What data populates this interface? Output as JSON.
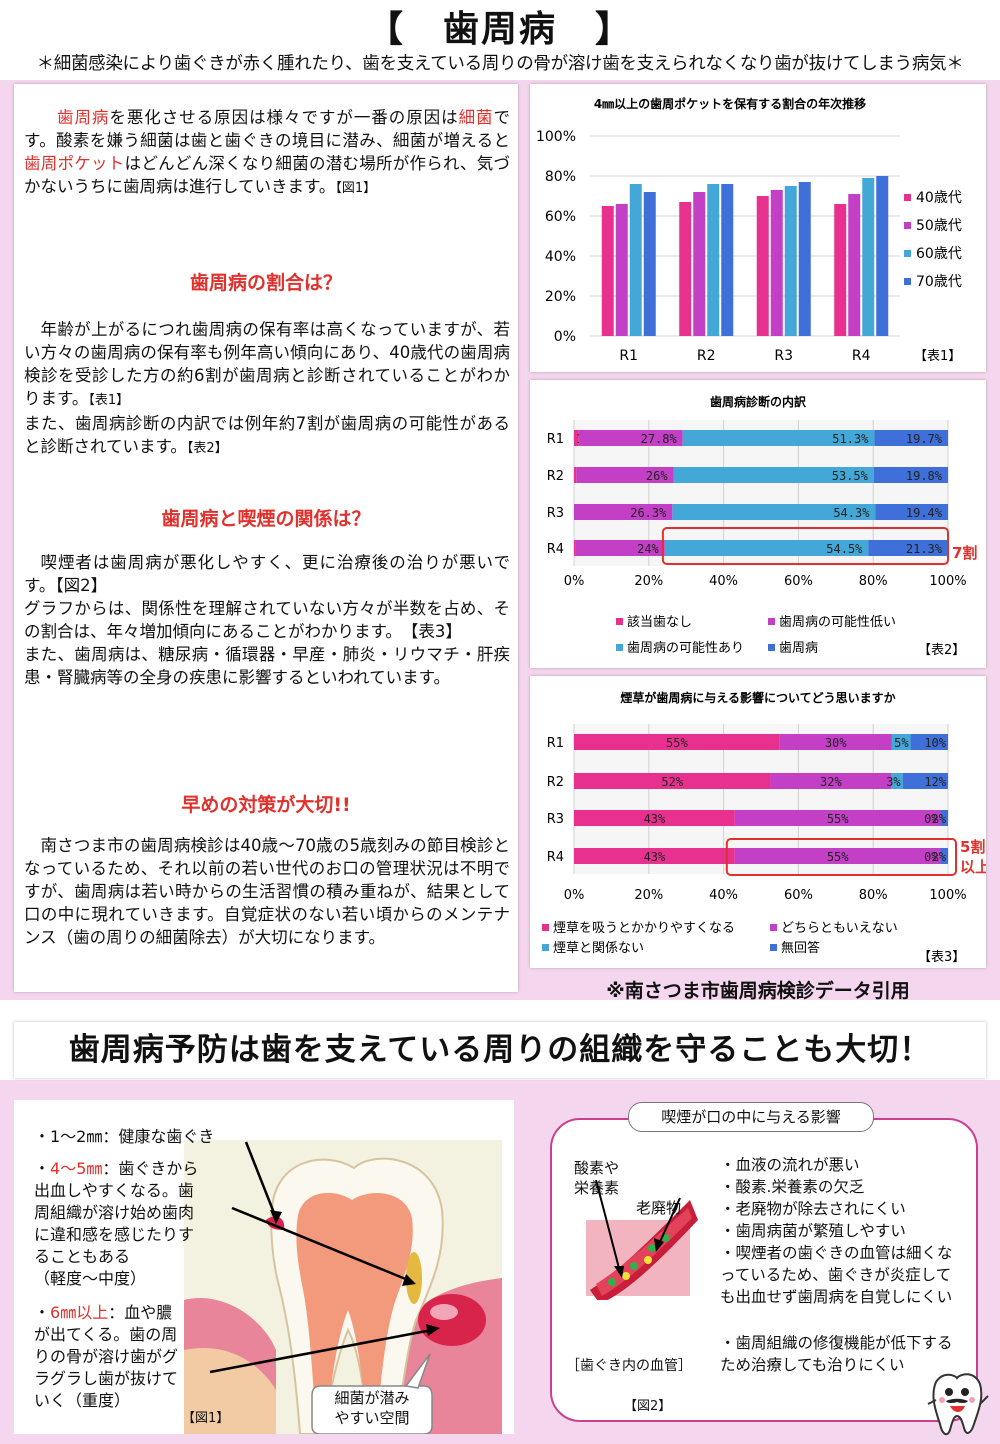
{
  "header": {
    "title": "【　歯周病　】",
    "subtitle": "＊細菌感染により歯ぐきが赤く腫れたり、歯を支えている周りの骨が溶け歯を支えられなくなり歯が抜けてしまう病気＊"
  },
  "intro": {
    "hl1": "歯周病",
    "t1": "を悪化させる原因は様々ですが一番の原因は",
    "hl2": "細菌",
    "t2": "です。酸素を嫌う細菌は歯と歯ぐきの境目に潜み、細菌が増えると",
    "hl3": "歯周ポケット",
    "t3": "はどんどん深くなり細菌の潜む場所が作られ、気づかないうちに歯周病は進行していきます。",
    "ref": "【図1】"
  },
  "section1": {
    "heading": "歯周病の割合は？",
    "p1": "年齢が上がるにつれ歯周病の保有率は高くなっていますが、若い方々の歯周病の保有率も例年高い傾向にあり、40歳代の歯周病検診を受診した方の約6割が歯周病と診断されていることがわかります。",
    "ref1": "【表1】",
    "p2": "また、歯周病診断の内訳では例年約7割が歯周病の可能性があると診断されています。",
    "ref2": "【表2】"
  },
  "section2": {
    "heading": "歯周病と喫煙の関係は？",
    "p1": "喫煙者は歯周病が悪化しやすく、更に治療後の治りが悪いです。【図2】",
    "p2": "グラフからは、関係性を理解されていない方々が半数を占め、その割合は、年々増加傾向にあることがわかります。　【表3】",
    "p3": "また、歯周病は、糖尿病・循環器・早産・肺炎・リウマチ・肝疾患・腎臓病等の全身の疾患に影響するといわれています。"
  },
  "section3": {
    "heading": "早めの対策が大切!!",
    "p1": "南さつま市の歯周病検診は40歳～70歳の5歳刻みの節目検診となっているため、それ以前の若い世代のお口の管理状況は不明ですが、歯周病は若い時からの生活習慣の積み重ねが、結果として口の中に現れていきます。自覚症状のない若い頃からのメンテナンス（歯の周りの細菌除去）が大切になります。"
  },
  "chart_data": [
    {
      "type": "bar",
      "title": "4㎜以上の歯周ポケットを保有する割合の年次推移",
      "categories": [
        "R1",
        "R2",
        "R3",
        "R4"
      ],
      "series": [
        {
          "name": "40歳代",
          "values": [
            65,
            67,
            70,
            66
          ]
        },
        {
          "name": "50歳代",
          "values": [
            66,
            72,
            73,
            71
          ]
        },
        {
          "name": "60歳代",
          "values": [
            76,
            76,
            75,
            79
          ]
        },
        {
          "name": "70歳代",
          "values": [
            72,
            76,
            77,
            80
          ]
        }
      ],
      "ylim": [
        0,
        100
      ],
      "yticks": [
        "0%",
        "20%",
        "40%",
        "60%",
        "80%",
        "100%"
      ],
      "colors": [
        "#e8308e",
        "#c23fc6",
        "#43a8d8",
        "#3f6fd8"
      ],
      "legend": "right",
      "ref": "【表1】"
    },
    {
      "type": "bar",
      "title": "歯周病診断の内訳",
      "stacked": true,
      "orientation": "horizontal",
      "categories": [
        "R1",
        "R2",
        "R3",
        "R4"
      ],
      "series": [
        {
          "name": "該当歯なし",
          "values": [
            1.3,
            0.6,
            0,
            0.3
          ],
          "labels": [
            "1.3%",
            "0.6%",
            "0%",
            "0.3%"
          ]
        },
        {
          "name": "歯周病の可能性低い",
          "values": [
            27.8,
            26,
            26.3,
            24
          ],
          "labels": [
            "27.8%",
            "26%",
            "26.3%",
            "24%"
          ]
        },
        {
          "name": "歯周病の可能性あり",
          "values": [
            51.3,
            53.5,
            54.3,
            54.5
          ],
          "labels": [
            "51.3%",
            "53.5%",
            "54.3%",
            "54.5%"
          ]
        },
        {
          "name": "歯周病",
          "values": [
            19.7,
            19.8,
            19.4,
            21.3
          ],
          "labels": [
            "19.7%",
            "19.8%",
            "19.4%",
            "21.3%"
          ]
        }
      ],
      "xticks": [
        "0%",
        "20%",
        "40%",
        "60%",
        "80%",
        "100%"
      ],
      "colors": [
        "#e8308e",
        "#c23fc6",
        "#43a8d8",
        "#3f6fd8"
      ],
      "annotation": "7割",
      "legend": "bottom",
      "ref": "【表2】"
    },
    {
      "type": "bar",
      "title": "煙草が歯周病に与える影響についてどう思いますか",
      "stacked": true,
      "orientation": "horizontal",
      "categories": [
        "R1",
        "R2",
        "R3",
        "R4"
      ],
      "series": [
        {
          "name": "煙草を吸うとかかりやすくなる",
          "values": [
            55,
            52,
            43,
            43
          ],
          "labels": [
            "55%",
            "52%",
            "43%",
            "43%"
          ]
        },
        {
          "name": "どちらともいえない",
          "values": [
            30,
            32,
            55,
            55
          ],
          "labels": [
            "30%",
            "32%",
            "55%",
            "55%"
          ]
        },
        {
          "name": "煙草と関係ない",
          "values": [
            5,
            3,
            0,
            0
          ],
          "labels": [
            "5%",
            "3%",
            "0%",
            "0%"
          ]
        },
        {
          "name": "無回答",
          "values": [
            10,
            12,
            2,
            2
          ],
          "labels": [
            "10%",
            "12%",
            "2%",
            "2%"
          ]
        }
      ],
      "xticks": [
        "0%",
        "20%",
        "40%",
        "60%",
        "80%",
        "100%"
      ],
      "colors": [
        "#e8308e",
        "#c23fc6",
        "#43a8d8",
        "#3f6fd8"
      ],
      "annotation": [
        "5割",
        "以上"
      ],
      "legend": "bottom",
      "ref": "【表3】"
    }
  ],
  "citation": "※南さつま市歯周病検診データ引用",
  "banner": "歯周病予防は歯を支えている周りの組織を守ることも大切！",
  "tooth": {
    "l1": "・1～2㎜：健康な歯ぐき",
    "l2a": "・",
    "l2b": "4～5㎜",
    "l2c": "：歯ぐきから",
    "l3": "出血しやすくなる。歯",
    "l4": "周組織が溶け始め歯肉",
    "l5": "に違和感を感じたりす",
    "l6": "ることもある",
    "l7": "（軽度～中度）",
    "l8a": "・",
    "l8b": "6㎜以上",
    "l8c": "：血や膿",
    "l9": "が出てくる。歯の周",
    "l10": "りの骨が溶け歯がグ",
    "l11": "ラグラし歯が抜けて",
    "l12": "いく（重度）",
    "ref": "【図1】",
    "bubble1": "細菌が潜み",
    "bubble2": "やすい空間"
  },
  "smoke": {
    "title": "喫煙が口の中に与える影響",
    "label_oxygen1": "酸素や",
    "label_oxygen2": "栄養素",
    "label_waste": "老廃物",
    "vessel_caption": "［歯ぐき内の血管］",
    "ref": "【図2】",
    "effects": [
      "・血液の流れが悪い",
      "・酸素.栄養素の欠乏",
      "・老廃物が除去されにくい",
      "・歯周病菌が繁殖しやすい",
      "・喫煙者の歯ぐきの血管は細くなっているため、歯ぐきが炎症しても出血せず歯周病を自覚しにくい",
      "・歯周組織の修復機能が低下するため治療しても治りにくい"
    ]
  }
}
